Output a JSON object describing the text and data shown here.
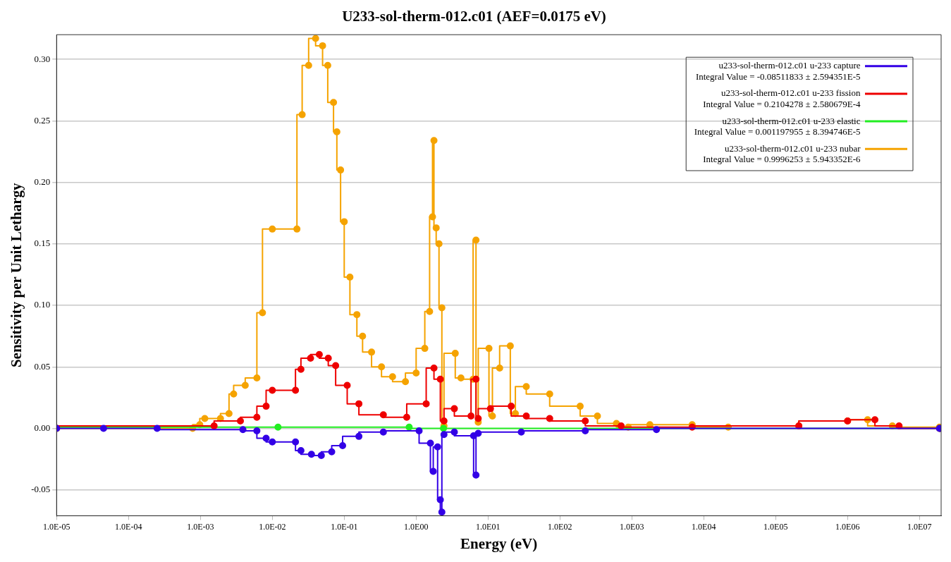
{
  "chart_data": {
    "type": "step",
    "title": "U233-sol-therm-012.c01 (AEF=0.0175 eV)",
    "xlabel": "Energy (eV)",
    "ylabel": "Sensitivity per Unit Lethargy",
    "log": "x",
    "grid": "y",
    "legend": "top right",
    "marker": "circle",
    "xlim": [
      1e-05,
      20000000.0
    ],
    "xticks": [
      {
        "value": 1e-05,
        "label": "1.0E-05"
      },
      {
        "value": 0.0001,
        "label": "1.0E-04"
      },
      {
        "value": 0.001,
        "label": "1.0E-03"
      },
      {
        "value": 0.01,
        "label": "1.0E-02"
      },
      {
        "value": 0.1,
        "label": "1.0E-01"
      },
      {
        "value": 1,
        "label": "1.0E00"
      },
      {
        "value": 10,
        "label": "1.0E01"
      },
      {
        "value": 100,
        "label": "1.0E02"
      },
      {
        "value": 1000,
        "label": "1.0E03"
      },
      {
        "value": 10000,
        "label": "1.0E04"
      },
      {
        "value": 100000,
        "label": "1.0E05"
      },
      {
        "value": 1000000,
        "label": "1.0E06"
      },
      {
        "value": 10000000,
        "label": "1.0E07"
      }
    ],
    "ylim": [
      -0.071,
      0.32
    ],
    "yticks": [
      {
        "value": -0.05,
        "label": "-0.05"
      },
      {
        "value": 0,
        "label": "0.00"
      },
      {
        "value": 0.05,
        "label": "0.05"
      },
      {
        "value": 0.1,
        "label": "0.10"
      },
      {
        "value": 0.15,
        "label": "0.15"
      },
      {
        "value": 0.2,
        "label": "0.20"
      },
      {
        "value": 0.25,
        "label": "0.25"
      },
      {
        "value": 0.3,
        "label": "0.30"
      }
    ],
    "series": [
      {
        "name": "u233-sol-therm-012.c01 u-233 capture\n Integral Value = -0.08511833 ± 2.594351E-5",
        "color": "#3300e6",
        "x": [
          1e-05,
          4.5e-05,
          0.00025,
          0.0039,
          0.0061,
          0.0082,
          0.01,
          0.021,
          0.025,
          0.035,
          0.048,
          0.067,
          0.095,
          0.16,
          0.35,
          1.1,
          1.58,
          1.73,
          1.99,
          2.17,
          2.28,
          2.44,
          3.4,
          6.3,
          6.8,
          7.3,
          29,
          225,
          2200,
          19000000.0
        ],
        "values": [
          0,
          0,
          0,
          -0.001,
          -0.002,
          -0.008,
          -0.011,
          -0.011,
          -0.018,
          -0.021,
          -0.022,
          -0.019,
          -0.014,
          -0.0065,
          -0.003,
          -0.002,
          -0.012,
          -0.035,
          -0.015,
          -0.058,
          -0.068,
          -0.005,
          -0.003,
          -0.006,
          -0.038,
          -0.004,
          -0.003,
          -0.002,
          -0.001,
          0
        ]
      },
      {
        "name": "u233-sol-therm-012.c01 u-233 fission\n Integral Value = 0.2104278 ± 2.580679E-4",
        "color": "#ee0000",
        "x": [
          1e-05,
          0.00155,
          0.0036,
          0.0061,
          0.0082,
          0.01,
          0.021,
          0.025,
          0.034,
          0.045,
          0.06,
          0.076,
          0.11,
          0.16,
          0.35,
          0.74,
          1.38,
          1.77,
          2.17,
          2.44,
          3.4,
          5.8,
          6.8,
          7.3,
          10.8,
          21,
          34,
          72,
          225,
          710,
          6900,
          210000.0,
          1000000.0,
          2400000.0,
          5200000.0,
          19000000.0
        ],
        "values": [
          0,
          0.002,
          0.006,
          0.009,
          0.018,
          0.031,
          0.031,
          0.048,
          0.057,
          0.06,
          0.057,
          0.051,
          0.035,
          0.02,
          0.011,
          0.009,
          0.02,
          0.049,
          0.04,
          0.006,
          0.016,
          0.01,
          0.04,
          0.008,
          0.016,
          0.018,
          0.01,
          0.008,
          0.006,
          0.002,
          0.001,
          0.002,
          0.006,
          0.007,
          0.002,
          0
        ]
      },
      {
        "name": "u233-sol-therm-012.c01 u-233 elastic\n Integral Value = 0.001197955 ± 8.394746E-5",
        "color": "#22ee22",
        "x": [
          1e-05,
          0.012,
          0.8,
          2.4,
          19000000.0
        ],
        "values": [
          0,
          0.001,
          0.001,
          0,
          0
        ]
      },
      {
        "name": "u233-sol-therm-012.c01 u-233 nubar\n Integral Value = 0.9996253 ± 5.943352E-6",
        "color": "#f5a300",
        "x": [
          1e-05,
          0.00078,
          0.00098,
          0.00115,
          0.0019,
          0.0025,
          0.0029,
          0.0042,
          0.0061,
          0.0073,
          0.01,
          0.022,
          0.026,
          0.032,
          0.04,
          0.05,
          0.059,
          0.071,
          0.079,
          0.089,
          0.1,
          0.12,
          0.15,
          0.18,
          0.24,
          0.33,
          0.47,
          0.71,
          1.0,
          1.32,
          1.54,
          1.69,
          1.77,
          1.9,
          2.08,
          2.28,
          2.44,
          3.5,
          4.2,
          6.2,
          6.8,
          7.3,
          10.3,
          11.5,
          14.5,
          20.4,
          24,
          34,
          72,
          191,
          332,
          610,
          890,
          1780,
          6900,
          21900,
          210000.0,
          1000000.0,
          1900000.0,
          4200000.0,
          19000000.0
        ],
        "values": [
          0,
          0,
          0.003,
          0.008,
          0.008,
          0.012,
          0.028,
          0.035,
          0.041,
          0.094,
          0.162,
          0.162,
          0.255,
          0.295,
          0.317,
          0.311,
          0.295,
          0.265,
          0.241,
          0.21,
          0.168,
          0.123,
          0.0925,
          0.075,
          0.062,
          0.05,
          0.042,
          0.038,
          0.045,
          0.065,
          0.095,
          0.172,
          0.234,
          0.163,
          0.15,
          0.098,
          0.002,
          0.061,
          0.041,
          0.04,
          0.153,
          0.005,
          0.065,
          0.01,
          0.049,
          0.067,
          0.012,
          0.034,
          0.028,
          0.018,
          0.01,
          0.004,
          0.001,
          0.003,
          0.003,
          0.001,
          0.002,
          0.006,
          0.007,
          0.002,
          0.001
        ]
      }
    ]
  }
}
